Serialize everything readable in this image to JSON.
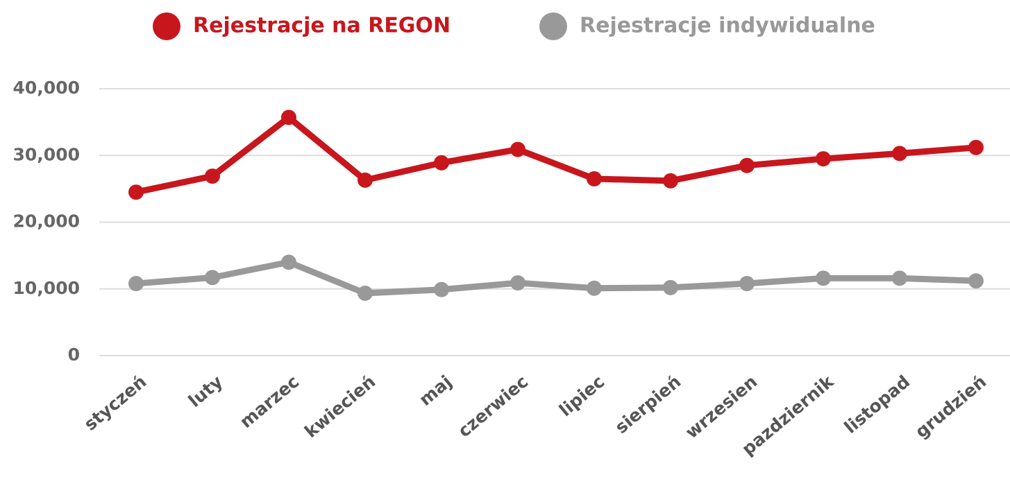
{
  "chart_data": {
    "type": "line",
    "categories": [
      "styczeń",
      "luty",
      "marzec",
      "kwiecień",
      "maj",
      "czerwiec",
      "lipiec",
      "sierpień",
      "wrzesien",
      "pazdziernik",
      "listopad",
      "grudzień"
    ],
    "series": [
      {
        "name": "Rejestracje na REGON",
        "color": "#c8161d",
        "values": [
          24500,
          26900,
          35700,
          26300,
          28900,
          30900,
          26500,
          26200,
          28500,
          29500,
          30300,
          31200
        ]
      },
      {
        "name": "Rejestracje indywidualne",
        "color": "#999999",
        "values": [
          10800,
          11700,
          14000,
          9350,
          9900,
          10900,
          10100,
          10200,
          10800,
          11600,
          11600,
          11200
        ]
      }
    ],
    "ylim": [
      0,
      40000
    ],
    "yticks": [
      0,
      {
        "value": 10000,
        "label": "10,000"
      },
      {
        "value": 20000,
        "label": "20,000"
      },
      {
        "value": 30000,
        "label": "30,000"
      },
      {
        "value": 40000,
        "label": "40,000"
      }
    ],
    "grid": true,
    "legend": "top"
  }
}
